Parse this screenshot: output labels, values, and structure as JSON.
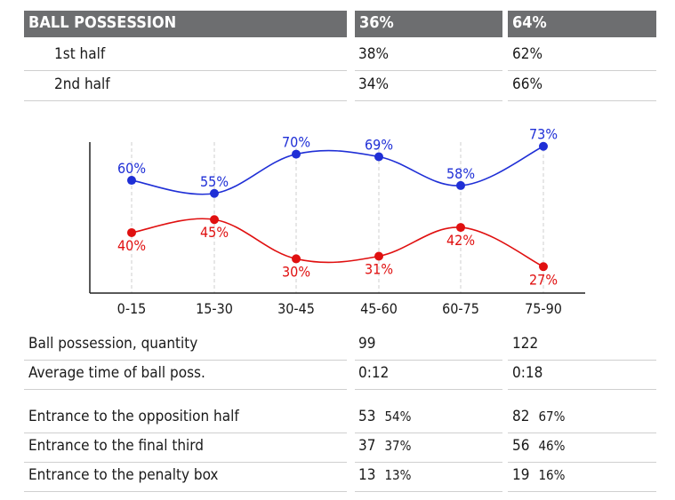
{
  "header": {
    "title": "BALL POSSESSION",
    "team1": "36%",
    "team2": "64%"
  },
  "halves": [
    {
      "label": "1st half",
      "team1": "38%",
      "team2": "62%"
    },
    {
      "label": "2nd half",
      "team1": "34%",
      "team2": "66%"
    }
  ],
  "stats_a": [
    {
      "label": "Ball possession, quantity",
      "team1": "99",
      "team2": "122"
    },
    {
      "label": "Average time of ball poss.",
      "team1": "0:12",
      "team2": "0:18"
    }
  ],
  "stats_b": [
    {
      "label": "Entrance to the opposition half",
      "team1": "53",
      "team1_pct": "54%",
      "team2": "82",
      "team2_pct": "67%"
    },
    {
      "label": "Entrance to the final third",
      "team1": "37",
      "team1_pct": "37%",
      "team2": "56",
      "team2_pct": "46%"
    },
    {
      "label": "Entrance to the penalty box",
      "team1": "13",
      "team1_pct": "13%",
      "team2": "19",
      "team2_pct": "16%"
    }
  ],
  "colors": {
    "header_bg": "#6d6e70",
    "blue": "#1f2fd6",
    "red": "#e01010"
  },
  "chart_data": {
    "type": "line",
    "categories": [
      "0-15",
      "15-30",
      "30-45",
      "45-60",
      "60-75",
      "75-90"
    ],
    "series": [
      {
        "color": "#1f2fd6",
        "values": [
          60,
          55,
          70,
          69,
          58,
          73
        ],
        "labels": [
          "60%",
          "55%",
          "70%",
          "69%",
          "58%",
          "73%"
        ]
      },
      {
        "color": "#e01010",
        "values": [
          40,
          45,
          30,
          31,
          42,
          27
        ],
        "labels": [
          "40%",
          "45%",
          "30%",
          "31%",
          "42%",
          "27%"
        ]
      }
    ],
    "ylim": [
      22,
      78
    ],
    "grid": "vertical-dashed"
  }
}
